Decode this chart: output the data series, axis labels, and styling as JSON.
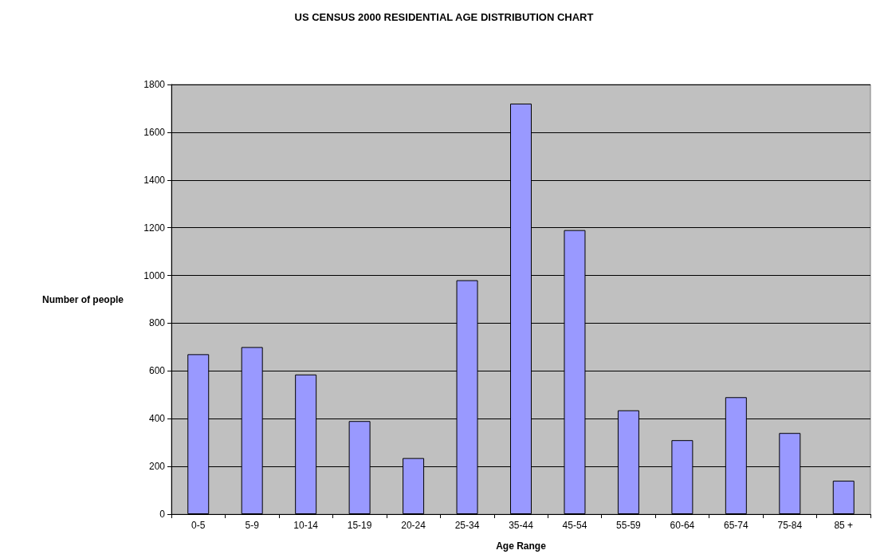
{
  "chart_data": {
    "type": "bar",
    "title": "US CENSUS 2000 RESIDENTIAL AGE DISTRIBUTION CHART",
    "xlabel": "Age Range",
    "ylabel": "Number of people",
    "categories": [
      "0-5",
      "5-9",
      "10-14",
      "15-19",
      "20-24",
      "25-34",
      "35-44",
      "45-54",
      "55-59",
      "60-64",
      "65-74",
      "75-84",
      "85 +"
    ],
    "values": [
      670,
      700,
      585,
      390,
      235,
      980,
      1720,
      1190,
      435,
      310,
      490,
      340,
      140
    ],
    "color": "#9999ff",
    "ylim": [
      0,
      1800
    ],
    "yticks": [
      0,
      200,
      400,
      600,
      800,
      1000,
      1200,
      1400,
      1600,
      1800
    ],
    "grid": "y"
  }
}
